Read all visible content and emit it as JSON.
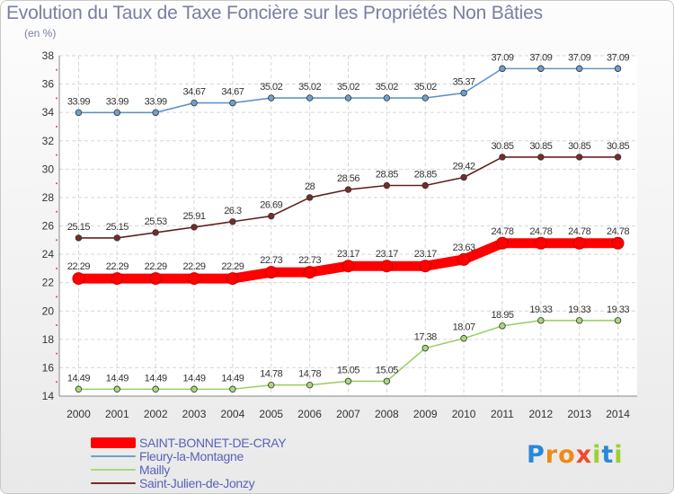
{
  "title": "Evolution du Taux de Taxe Foncière sur les Propriétés Non Bâties",
  "unit": "(en %)",
  "logo_text": "Proxiti",
  "chart_data": {
    "type": "line",
    "x": [
      "2000",
      "2001",
      "2002",
      "2003",
      "2004",
      "2005",
      "2006",
      "2007",
      "2008",
      "2009",
      "2010",
      "2011",
      "2012",
      "2013",
      "2014"
    ],
    "ylim": [
      14,
      38
    ],
    "yticks": [
      14,
      16,
      18,
      20,
      22,
      24,
      26,
      28,
      30,
      32,
      34,
      36,
      38
    ],
    "grid": true,
    "legend_position": "bottom-left",
    "series": [
      {
        "name": "SAINT-BONNET-DE-CRAY",
        "color": "#ff0000",
        "values": [
          22.29,
          22.29,
          22.29,
          22.29,
          22.29,
          22.73,
          22.73,
          23.17,
          23.17,
          23.17,
          23.63,
          24.78,
          24.78,
          24.78,
          24.78
        ],
        "labels": [
          "22.29",
          "22.29",
          "22.29",
          "22.29",
          "22.29",
          "22.73",
          "22.73",
          "23.17",
          "23.17",
          "23.17",
          "23.63",
          "24.78",
          "24.78",
          "24.78",
          "24.78"
        ]
      },
      {
        "name": "Fleury-la-Montagne",
        "color": "#6fa0d0",
        "values": [
          33.99,
          33.99,
          33.99,
          34.67,
          34.67,
          35.02,
          35.02,
          35.02,
          35.02,
          35.02,
          35.37,
          37.09,
          37.09,
          37.09,
          37.09
        ],
        "labels": [
          "33.99",
          "33.99",
          "33.99",
          "34.67",
          "34.67",
          "35.02",
          "35.02",
          "35.02",
          "35.02",
          "35.02",
          "35.37",
          "37.09",
          "37.09",
          "37.09",
          "37.09"
        ]
      },
      {
        "name": "Mailly",
        "color": "#a8d878",
        "values": [
          14.49,
          14.49,
          14.49,
          14.49,
          14.49,
          14.78,
          14.78,
          15.05,
          15.05,
          17.38,
          18.07,
          18.95,
          19.33,
          19.33,
          19.33
        ],
        "labels": [
          "14.49",
          "14.49",
          "14.49",
          "14.49",
          "14.49",
          "14.78",
          "14.78",
          "15.05",
          "15.05",
          "17.38",
          "18.07",
          "18.95",
          "19.33",
          "19.33",
          "19.33"
        ]
      },
      {
        "name": "Saint-Julien-de-Jonzy",
        "color": "#7a2a2a",
        "values": [
          25.15,
          25.15,
          25.53,
          25.91,
          26.3,
          26.69,
          28,
          28.56,
          28.85,
          28.85,
          29.42,
          30.85,
          30.85,
          30.85,
          30.85
        ],
        "labels": [
          "25.15",
          "25.15",
          "25.53",
          "25.91",
          "26.3",
          "26.69",
          "28",
          "28.56",
          "28.85",
          "28.85",
          "29.42",
          "30.85",
          "30.85",
          "30.85",
          "30.85"
        ]
      }
    ]
  }
}
